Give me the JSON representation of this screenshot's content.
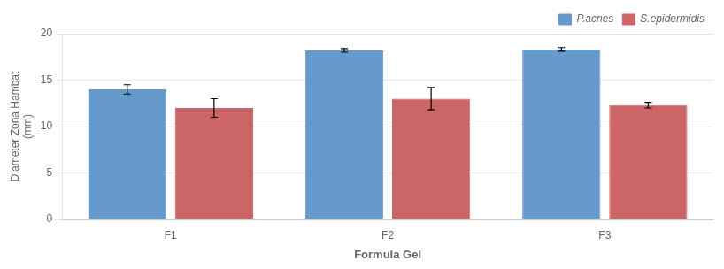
{
  "chart_data": {
    "type": "bar",
    "categories": [
      "F1",
      "F2",
      "F3"
    ],
    "series": [
      {
        "name": "P.acnes",
        "color": "#6699cc",
        "values": [
          14.0,
          18.2,
          18.3
        ],
        "errors": [
          0.5,
          0.2,
          0.2
        ]
      },
      {
        "name": "S.epidermidis",
        "color": "#cc6666",
        "values": [
          12.0,
          13.0,
          12.3
        ],
        "errors": [
          1.0,
          1.2,
          0.3
        ]
      }
    ],
    "xlabel": "Formula Gel",
    "ylabel": "Diameter Zona Hambat\n(mm)",
    "ylim": [
      0,
      20
    ],
    "yticks": [
      0,
      5,
      10,
      15,
      20
    ],
    "grid": true,
    "legend": "upper right"
  }
}
